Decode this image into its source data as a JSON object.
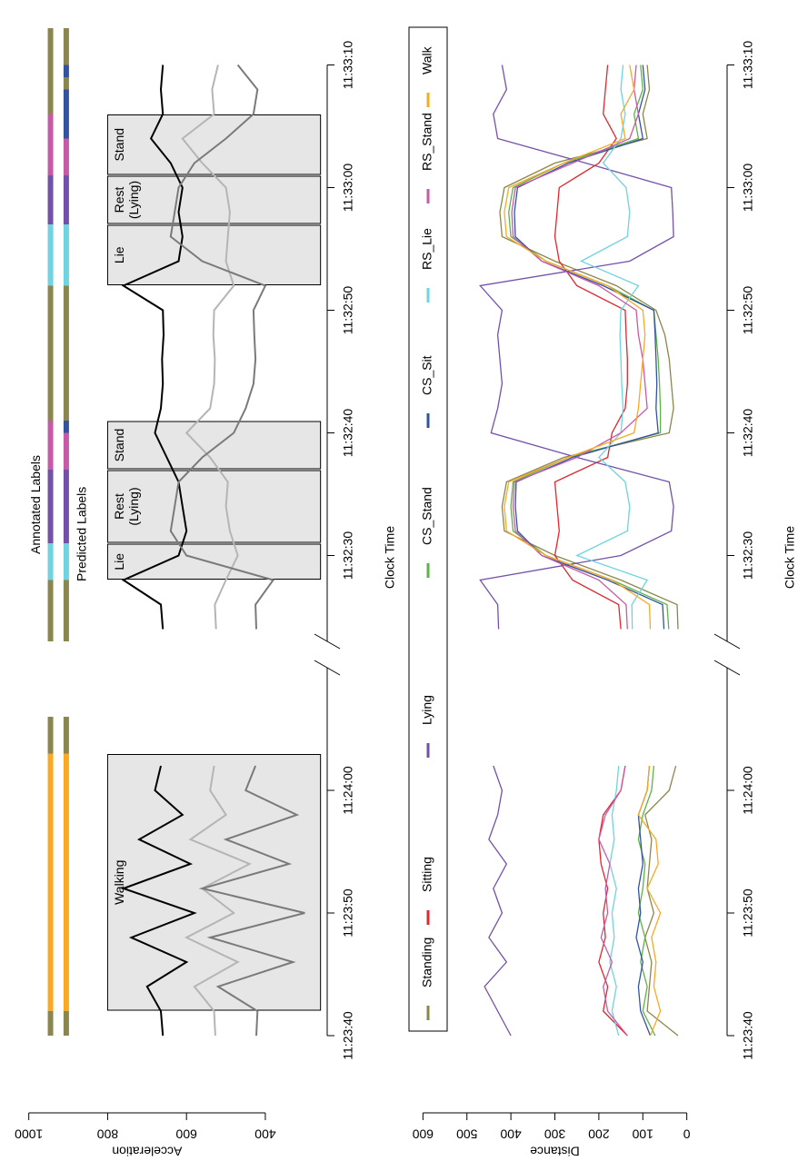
{
  "chart_data": [
    {
      "type": "line",
      "y_label": "Acceleration",
      "x_label": "Clock Time",
      "xlim": [
        [
          "11:23:38",
          "11:24:10"
        ],
        [
          "11:32:23",
          "11:33:13"
        ]
      ],
      "xticks": [
        "11:23:40",
        "11:23:50",
        "11:24:00",
        "11:32:30",
        "11:32:40",
        "11:32:50",
        "11:33:00",
        "11:33:10"
      ],
      "ylim": [
        250,
        1050
      ],
      "yticks": [
        400,
        600,
        800,
        1000
      ],
      "x": [
        "11:23:40",
        "11:23:42",
        "11:23:44",
        "11:23:46",
        "11:23:48",
        "11:23:50",
        "11:23:52",
        "11:23:54",
        "11:23:56",
        "11:23:58",
        "11:24:00",
        "11:24:02",
        "11:32:24",
        "11:32:26",
        "11:32:28",
        "11:32:30",
        "11:32:32",
        "11:32:34",
        "11:32:36",
        "11:32:38",
        "11:32:40",
        "11:32:42",
        "11:32:44",
        "11:32:46",
        "11:32:48",
        "11:32:50",
        "11:32:52",
        "11:32:54",
        "11:32:56",
        "11:32:58",
        "11:33:00",
        "11:33:02",
        "11:33:04",
        "11:33:06",
        "11:33:08",
        "11:33:10"
      ],
      "series": [
        {
          "color": "#000000",
          "values": [
            660,
            665,
            700,
            600,
            740,
            580,
            760,
            590,
            720,
            610,
            680,
            665,
            660,
            665,
            760,
            620,
            600,
            610,
            620,
            650,
            680,
            665,
            660,
            662,
            658,
            660,
            760,
            620,
            610,
            620,
            610,
            640,
            690,
            660,
            665,
            660
          ]
        },
        {
          "color": "#b5b5b5",
          "values": [
            527,
            530,
            580,
            470,
            600,
            480,
            560,
            440,
            590,
            500,
            540,
            530,
            525,
            528,
            500,
            470,
            490,
            500,
            495,
            540,
            600,
            540,
            530,
            528,
            532,
            530,
            480,
            500,
            495,
            490,
            500,
            560,
            610,
            530,
            535,
            520
          ]
        },
        {
          "color": "#7a7a7a",
          "values": [
            423,
            420,
            520,
            330,
            540,
            300,
            560,
            340,
            500,
            320,
            450,
            425,
            423,
            425,
            380,
            600,
            640,
            630,
            620,
            560,
            480,
            450,
            430,
            425,
            428,
            430,
            400,
            560,
            640,
            630,
            620,
            580,
            500,
            430,
            420,
            470
          ]
        }
      ],
      "box_range": [
        260,
        800
      ],
      "boxes": [
        {
          "label": [
            "Walking"
          ],
          "start": "11:23:42",
          "end": "11:24:03"
        },
        {
          "label": [
            "Lie"
          ],
          "start": "11:32:28",
          "end": "11:32:31"
        },
        {
          "label": [
            "Rest",
            "(Lying)"
          ],
          "start": "11:32:31",
          "end": "11:32:37"
        },
        {
          "label": [
            "Stand"
          ],
          "start": "11:32:37",
          "end": "11:32:41"
        },
        {
          "label": [
            "Lie"
          ],
          "start": "11:32:52",
          "end": "11:32:57"
        },
        {
          "label": [
            "Rest",
            "(Lying)"
          ],
          "start": "11:32:57",
          "end": "11:33:01"
        },
        {
          "label": [
            "Stand"
          ],
          "start": "11:33:01",
          "end": "11:33:06"
        }
      ],
      "label_tracks": [
        {
          "name": "Annotated Labels",
          "level": 945,
          "bands": [
            {
              "start": "11:23:40",
              "end": "11:23:42",
              "color": "#8b864e"
            },
            {
              "start": "11:23:42",
              "end": "11:24:03",
              "color": "#fba823"
            },
            {
              "start": "11:24:03",
              "end": "11:24:06",
              "color": "#8b864e"
            },
            {
              "start": "11:32:23",
              "end": "11:32:28",
              "color": "#8b864e"
            },
            {
              "start": "11:32:28",
              "end": "11:32:31",
              "color": "#6fd3e0"
            },
            {
              "start": "11:32:31",
              "end": "11:32:37",
              "color": "#7451a8"
            },
            {
              "start": "11:32:37",
              "end": "11:32:41",
              "color": "#c75aa8"
            },
            {
              "start": "11:32:41",
              "end": "11:32:52",
              "color": "#8b864e"
            },
            {
              "start": "11:32:52",
              "end": "11:32:57",
              "color": "#6fd3e0"
            },
            {
              "start": "11:32:57",
              "end": "11:33:01",
              "color": "#7451a8"
            },
            {
              "start": "11:33:01",
              "end": "11:33:06",
              "color": "#c75aa8"
            },
            {
              "start": "11:33:06",
              "end": "11:33:13",
              "color": "#8b864e"
            }
          ]
        },
        {
          "name": "Predicted Labels",
          "level": 905,
          "bands": [
            {
              "start": "11:23:40",
              "end": "11:23:42",
              "color": "#8b864e"
            },
            {
              "start": "11:23:42",
              "end": "11:24:03",
              "color": "#fba823"
            },
            {
              "start": "11:24:03",
              "end": "11:24:06",
              "color": "#8b864e"
            },
            {
              "start": "11:32:23",
              "end": "11:32:28",
              "color": "#8b864e"
            },
            {
              "start": "11:32:28",
              "end": "11:32:31",
              "color": "#6fd3e0"
            },
            {
              "start": "11:32:31",
              "end": "11:32:37",
              "color": "#7451a8"
            },
            {
              "start": "11:32:37",
              "end": "11:32:40",
              "color": "#c75aa8"
            },
            {
              "start": "11:32:40",
              "end": "11:32:41",
              "color": "#3352a0"
            },
            {
              "start": "11:32:41",
              "end": "11:32:52",
              "color": "#8b864e"
            },
            {
              "start": "11:32:52",
              "end": "11:32:57",
              "color": "#6fd3e0"
            },
            {
              "start": "11:32:57",
              "end": "11:33:01",
              "color": "#7451a8"
            },
            {
              "start": "11:33:01",
              "end": "11:33:04",
              "color": "#c75aa8"
            },
            {
              "start": "11:33:04",
              "end": "11:33:08",
              "color": "#3352a0"
            },
            {
              "start": "11:33:08",
              "end": "11:33:09",
              "color": "#8b864e"
            },
            {
              "start": "11:33:09",
              "end": "11:33:10",
              "color": "#3352a0"
            },
            {
              "start": "11:33:10",
              "end": "11:33:13",
              "color": "#8b864e"
            }
          ]
        }
      ]
    },
    {
      "type": "line",
      "y_label": "Distance",
      "x_label": "Clock Time",
      "xlim": [
        [
          "11:23:38",
          "11:24:10"
        ],
        [
          "11:32:23",
          "11:33:13"
        ]
      ],
      "xticks": [
        "11:23:40",
        "11:23:50",
        "11:24:00",
        "11:32:30",
        "11:32:40",
        "11:32:50",
        "11:33:00",
        "11:33:10"
      ],
      "ylim": [
        -40,
        640
      ],
      "yticks": [
        0,
        100,
        200,
        300,
        400,
        500,
        600
      ],
      "x": [
        "11:23:40",
        "11:23:42",
        "11:23:44",
        "11:23:46",
        "11:23:48",
        "11:23:50",
        "11:23:52",
        "11:23:54",
        "11:23:56",
        "11:23:58",
        "11:24:00",
        "11:24:02",
        "11:32:24",
        "11:32:26",
        "11:32:28",
        "11:32:30",
        "11:32:32",
        "11:32:34",
        "11:32:36",
        "11:32:38",
        "11:32:40",
        "11:32:42",
        "11:32:44",
        "11:32:46",
        "11:32:48",
        "11:32:50",
        "11:32:52",
        "11:32:54",
        "11:32:56",
        "11:32:58",
        "11:33:00",
        "11:33:02",
        "11:33:04",
        "11:33:06",
        "11:33:08",
        "11:33:10"
      ],
      "series": [
        {
          "name": "Standing",
          "color": "#8b864e",
          "values": [
            20,
            90,
            85,
            80,
            95,
            75,
            90,
            85,
            80,
            95,
            40,
            25,
            20,
            22,
            150,
            300,
            415,
            420,
            410,
            280,
            40,
            30,
            35,
            40,
            50,
            70,
            160,
            300,
            420,
            425,
            415,
            300,
            90,
            100,
            85,
            90
          ]
        },
        {
          "name": "Sitting",
          "color": "#e0262e",
          "values": [
            135,
            190,
            180,
            200,
            185,
            190,
            180,
            195,
            200,
            190,
            150,
            140,
            150,
            155,
            260,
            300,
            290,
            295,
            300,
            180,
            170,
            140,
            135,
            135,
            138,
            140,
            250,
            290,
            300,
            295,
            290,
            200,
            160,
            190,
            185,
            180
          ]
        },
        {
          "name": "Lying",
          "color": "#7451a8",
          "values": [
            400,
            430,
            460,
            410,
            450,
            420,
            440,
            410,
            450,
            430,
            420,
            440,
            428,
            430,
            470,
            150,
            35,
            30,
            40,
            250,
            445,
            430,
            420,
            425,
            430,
            420,
            470,
            130,
            30,
            32,
            35,
            230,
            430,
            440,
            410,
            420
          ]
        },
        {
          "name": "CS_Stand",
          "color": "#5db346",
          "values": [
            72,
            100,
            90,
            105,
            95,
            110,
            100,
            95,
            110,
            100,
            80,
            75,
            41,
            45,
            170,
            320,
            395,
            400,
            395,
            270,
            60,
            60,
            62,
            65,
            70,
            75,
            180,
            320,
            400,
            405,
            395,
            280,
            110,
            120,
            100,
            105
          ]
        },
        {
          "name": "CS_Sit",
          "color": "#3352a0",
          "values": [
            83,
            105,
            110,
            100,
            115,
            105,
            110,
            100,
            105,
            110,
            90,
            85,
            52,
            55,
            180,
            330,
            385,
            390,
            388,
            260,
            65,
            70,
            68,
            70,
            72,
            75,
            190,
            330,
            390,
            392,
            385,
            270,
            100,
            110,
            95,
            100
          ]
        },
        {
          "name": "RS_Lie",
          "color": "#6fd3e0",
          "values": [
            155,
            170,
            160,
            175,
            165,
            170,
            160,
            175,
            165,
            170,
            160,
            155,
            124,
            125,
            90,
            250,
            135,
            130,
            140,
            200,
            150,
            145,
            148,
            150,
            152,
            150,
            110,
            240,
            135,
            130,
            138,
            190,
            150,
            140,
            150,
            145
          ]
        },
        {
          "name": "RS_Stand",
          "color": "#c75aa8",
          "values": [
            135,
            180,
            190,
            170,
            195,
            180,
            185,
            175,
            200,
            185,
            150,
            140,
            135,
            138,
            200,
            330,
            390,
            395,
            392,
            250,
            150,
            90,
            95,
            100,
            110,
            115,
            200,
            330,
            395,
            398,
            390,
            260,
            130,
            110,
            120,
            115
          ]
        },
        {
          "name": "Walk",
          "color": "#fba823",
          "values": [
            83,
            60,
            75,
            70,
            80,
            60,
            90,
            65,
            70,
            110,
            90,
            85,
            83,
            85,
            170,
            320,
            410,
            415,
            405,
            270,
            120,
            110,
            105,
            100,
            95,
            100,
            180,
            320,
            410,
            415,
            405,
            280,
            140,
            150,
            120,
            130
          ]
        }
      ]
    }
  ]
}
